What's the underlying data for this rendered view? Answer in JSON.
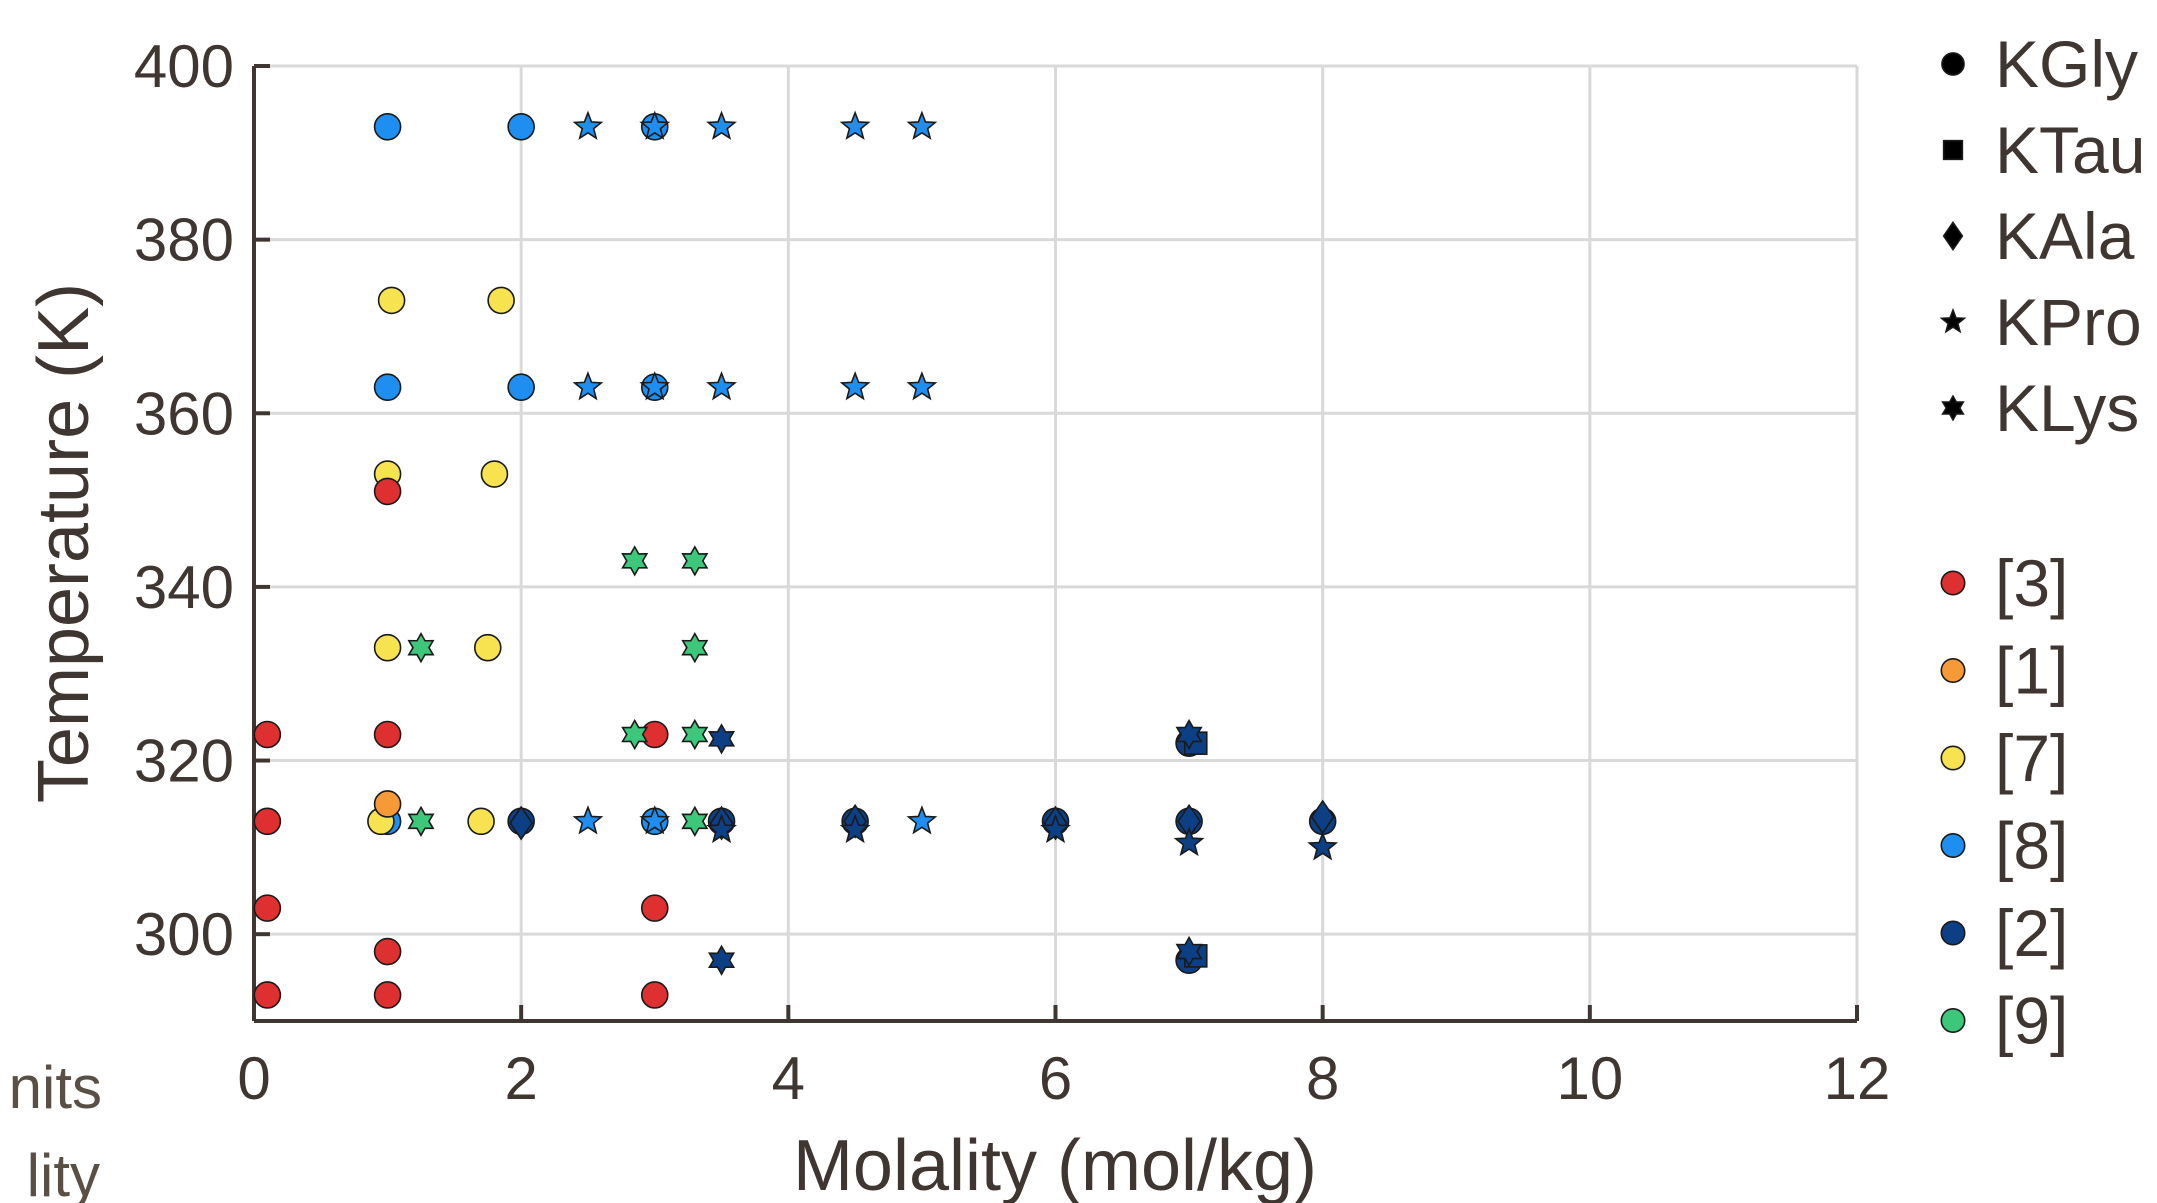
{
  "colors": {
    "ref_3": "#de3030",
    "ref_1": "#f59a36",
    "ref_7": "#f7e350",
    "ref_8": "#1e8ff0",
    "ref_2": "#0d3f85",
    "ref_9": "#3cc77a",
    "axis": "#3f3631",
    "grid": "#d9d9d9"
  },
  "chart_data": {
    "type": "scatter",
    "title": "",
    "xlabel": "Molality (mol/kg)",
    "ylabel": "Temperature (K)",
    "xlim": [
      0,
      12
    ],
    "ylim": [
      290,
      400
    ],
    "x_ticks": [
      "0",
      "2",
      "4",
      "6",
      "8",
      "10",
      "12"
    ],
    "y_ticks": [
      "300",
      "320",
      "340",
      "360",
      "380",
      "400"
    ],
    "grid": true,
    "legend_placement": "right, outside plot",
    "marker_legend": [
      {
        "label": "KGly",
        "marker": "circle"
      },
      {
        "label": "KTau",
        "marker": "square"
      },
      {
        "label": "KAla",
        "marker": "diamond"
      },
      {
        "label": "KPro",
        "marker": "star5"
      },
      {
        "label": "KLys",
        "marker": "hexagram"
      }
    ],
    "color_legend": [
      {
        "label": "[3]",
        "color_key": "ref_3"
      },
      {
        "label": "[1]",
        "color_key": "ref_1"
      },
      {
        "label": "[7]",
        "color_key": "ref_7"
      },
      {
        "label": "[8]",
        "color_key": "ref_8"
      },
      {
        "label": "[2]",
        "color_key": "ref_2"
      },
      {
        "label": "[9]",
        "color_key": "ref_9"
      }
    ],
    "series": [
      {
        "ref": "[8]",
        "color_key": "ref_8",
        "marker": "circle",
        "points": [
          [
            1,
            393
          ],
          [
            2,
            393
          ],
          [
            3,
            393
          ],
          [
            1,
            363
          ],
          [
            2,
            363
          ],
          [
            3,
            363
          ],
          [
            1,
            313
          ],
          [
            3,
            313
          ]
        ]
      },
      {
        "ref": "[8]",
        "color_key": "ref_8",
        "marker": "star5",
        "points": [
          [
            2.5,
            393
          ],
          [
            3,
            393
          ],
          [
            3.5,
            393
          ],
          [
            4.5,
            393
          ],
          [
            5,
            393
          ],
          [
            2.5,
            363
          ],
          [
            3,
            363
          ],
          [
            3.5,
            363
          ],
          [
            4.5,
            363
          ],
          [
            5,
            363
          ],
          [
            2.5,
            313
          ],
          [
            3,
            313
          ],
          [
            5,
            313
          ]
        ]
      },
      {
        "ref": "[7]",
        "color_key": "ref_7",
        "marker": "circle",
        "points": [
          [
            1.03,
            373
          ],
          [
            1.85,
            373
          ],
          [
            1,
            353
          ],
          [
            1.8,
            353
          ],
          [
            1,
            333
          ],
          [
            1.75,
            333
          ],
          [
            0.95,
            313
          ],
          [
            1.7,
            313
          ]
        ]
      },
      {
        "ref": "[3]",
        "color_key": "ref_3",
        "marker": "circle",
        "points": [
          [
            1,
            351
          ],
          [
            0.1,
            323
          ],
          [
            1,
            323
          ],
          [
            3,
            323
          ],
          [
            0.1,
            313
          ],
          [
            0.1,
            303
          ],
          [
            3,
            303
          ],
          [
            1,
            298
          ],
          [
            0.1,
            293
          ],
          [
            1,
            293
          ],
          [
            3,
            293
          ]
        ]
      },
      {
        "ref": "[1]",
        "color_key": "ref_1",
        "marker": "circle",
        "points": [
          [
            1,
            315
          ]
        ]
      },
      {
        "ref": "[9]",
        "color_key": "ref_9",
        "marker": "hexagram",
        "points": [
          [
            2.85,
            343
          ],
          [
            3.3,
            343
          ],
          [
            1.25,
            333
          ],
          [
            3.3,
            333
          ],
          [
            2.85,
            323
          ],
          [
            3.3,
            323
          ],
          [
            1.25,
            313
          ],
          [
            3.3,
            313
          ]
        ]
      },
      {
        "ref": "[2]",
        "color_key": "ref_2",
        "marker": "circle",
        "points": [
          [
            2,
            313
          ],
          [
            3.5,
            313
          ],
          [
            4.5,
            313
          ],
          [
            6,
            313
          ],
          [
            7,
            322
          ],
          [
            7,
            313
          ],
          [
            8,
            313
          ],
          [
            7,
            297
          ]
        ]
      },
      {
        "ref": "[2]",
        "color_key": "ref_2",
        "marker": "square",
        "points": [
          [
            7.05,
            322
          ],
          [
            7.05,
            297.5
          ]
        ]
      },
      {
        "ref": "[2]",
        "color_key": "ref_2",
        "marker": "diamond",
        "points": [
          [
            2,
            312.8
          ],
          [
            3.5,
            312.8
          ],
          [
            4.5,
            313
          ],
          [
            6,
            312.8
          ],
          [
            7,
            313
          ],
          [
            8,
            313.5
          ]
        ]
      },
      {
        "ref": "[2]",
        "color_key": "ref_2",
        "marker": "star5",
        "points": [
          [
            3.5,
            312
          ],
          [
            4.5,
            312
          ],
          [
            6,
            312
          ],
          [
            7,
            310.5
          ],
          [
            8,
            310
          ]
        ]
      },
      {
        "ref": "[2]",
        "color_key": "ref_2",
        "marker": "hexagram",
        "points": [
          [
            3.5,
            322.5
          ],
          [
            3.5,
            297
          ],
          [
            7,
            323
          ],
          [
            7,
            298
          ]
        ]
      }
    ],
    "cutoff_text": [
      "nits",
      "lity"
    ]
  }
}
